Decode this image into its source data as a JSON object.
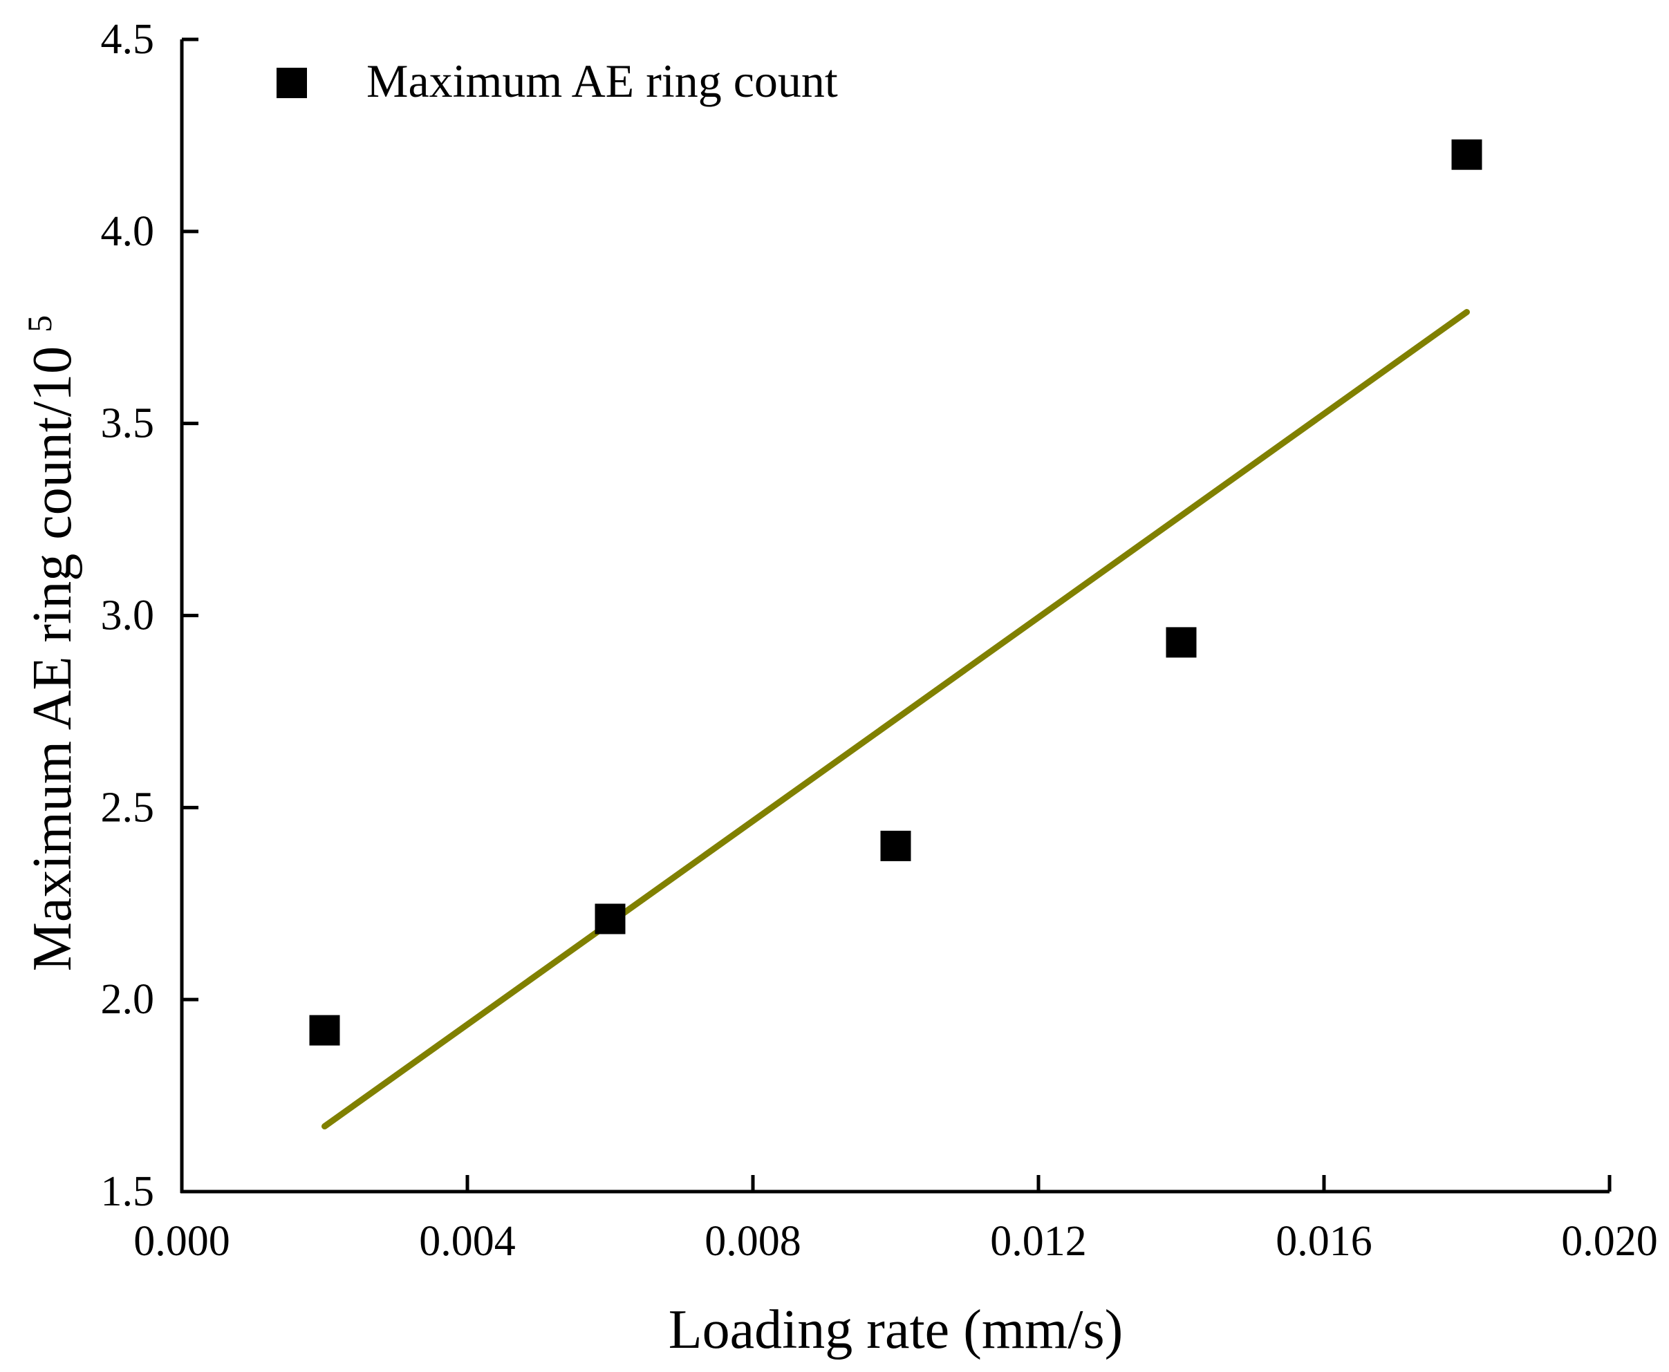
{
  "chart_data": {
    "type": "scatter",
    "title": "",
    "xlabel": "Loading rate (mm/s)",
    "ylabel": "Maximum AE ring count/10",
    "ylabel_superscript": "5",
    "xlim": [
      0.0,
      0.02
    ],
    "ylim": [
      1.5,
      4.5
    ],
    "x_ticks": [
      "0.000",
      "0.004",
      "0.008",
      "0.012",
      "0.016",
      "0.020"
    ],
    "x_tick_values": [
      0.0,
      0.004,
      0.008,
      0.012,
      0.016,
      0.02
    ],
    "y_ticks": [
      "1.5",
      "2.0",
      "2.5",
      "3.0",
      "3.5",
      "4.0",
      "4.5"
    ],
    "y_tick_values": [
      1.5,
      2.0,
      2.5,
      3.0,
      3.5,
      4.0,
      4.5
    ],
    "grid": false,
    "legend_position": "top-left",
    "series": [
      {
        "name": "Maximum AE ring count",
        "marker": "square",
        "color": "#000000",
        "x": [
          0.002,
          0.006,
          0.01,
          0.014,
          0.018
        ],
        "y": [
          1.92,
          2.21,
          2.4,
          2.93,
          4.2
        ]
      }
    ],
    "fit_line": {
      "type": "linear",
      "color": "#808000",
      "x": [
        0.002,
        0.018
      ],
      "y": [
        1.67,
        3.79
      ]
    }
  }
}
